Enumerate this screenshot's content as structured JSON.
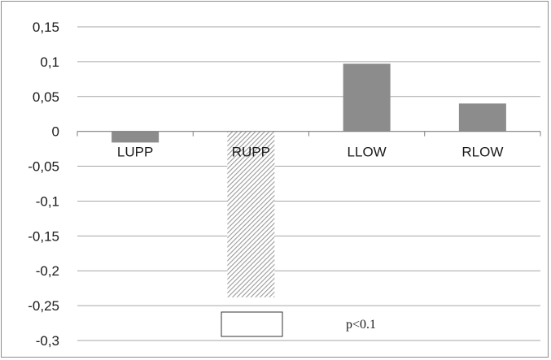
{
  "chart_data": {
    "type": "bar",
    "categories": [
      "LUPP",
      "RUPP",
      "LLOW",
      "RLOW"
    ],
    "values": [
      -0.016,
      -0.238,
      0.097,
      0.04
    ],
    "ylim": [
      -0.3,
      0.15
    ],
    "yticks": [
      0.15,
      0.1,
      0.05,
      0,
      -0.05,
      -0.1,
      -0.15,
      -0.2,
      -0.25,
      -0.3
    ],
    "ytick_labels": [
      "0,15",
      "0,1",
      "0,05",
      "0",
      "-0,05",
      "-0,1",
      "-0,15",
      "-0,2",
      "-0,25",
      "-0,3"
    ],
    "grid": true,
    "bar_styles": [
      "solid",
      "hatched",
      "solid",
      "solid"
    ],
    "bar_color": "#8c8c8c",
    "hatch_color": "#9a9a9a",
    "grid_color": "#a6a6a6",
    "legend": {
      "swatch": "empty-box",
      "label": "p<0.1"
    }
  }
}
